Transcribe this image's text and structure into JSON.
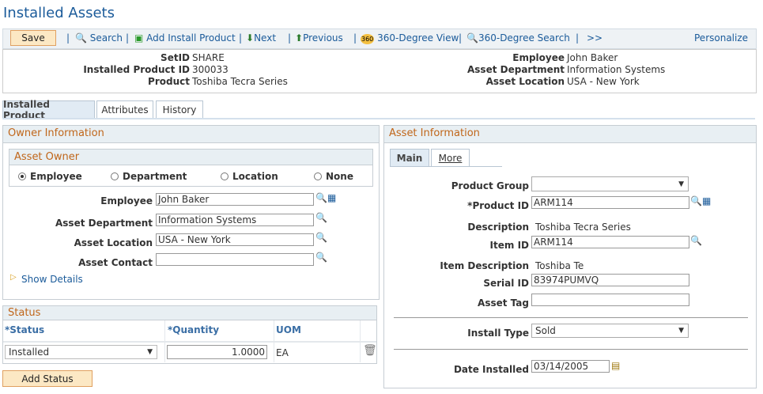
{
  "title": "Installed Assets",
  "toolbar": {
    "save": "Save",
    "search": "Search",
    "add": "Add Install Product",
    "next": "Next",
    "previous": "Previous",
    "view360": "360-Degree View",
    "search360": "360-Degree Search",
    "more": ">>",
    "personalize": "Personalize"
  },
  "header": {
    "setid_label": "SetID",
    "setid": "SHARE",
    "ipid_label": "Installed Product ID",
    "ipid": "300033",
    "product_label": "Product",
    "product": "Toshiba Tecra Series",
    "employee_label": "Employee",
    "employee": "John Baker",
    "dept_label": "Asset Department",
    "dept": "Information Systems",
    "loc_label": "Asset Location",
    "loc": "USA - New York"
  },
  "tabs": [
    "Installed Product",
    "Attributes",
    "History"
  ],
  "owner": {
    "title": "Owner Information",
    "asset_owner": "Asset Owner",
    "radios": [
      "Employee",
      "Department",
      "Location",
      "None"
    ],
    "selected": "Employee",
    "employee_label": "Employee",
    "employee": "John Baker",
    "dept_label": "Asset Department",
    "dept": "Information Systems",
    "loc_label": "Asset Location",
    "loc": "USA - New York",
    "contact_label": "Asset Contact",
    "contact": "",
    "show_details": "Show Details"
  },
  "status": {
    "title": "Status",
    "columns": [
      "*Status",
      "*Quantity",
      "UOM"
    ],
    "row": {
      "status": "Installed",
      "quantity": "1.0000",
      "uom": "EA"
    },
    "add": "Add Status"
  },
  "asset": {
    "title": "Asset Information",
    "subtabs": [
      "Main",
      "More"
    ],
    "product_group_label": "Product Group",
    "product_group": "",
    "product_id_label": "*Product ID",
    "product_id": "ARM114",
    "description_label": "Description",
    "description": "Toshiba Tecra Series",
    "item_id_label": "Item ID",
    "item_id": "ARM114",
    "item_desc_label": "Item Description",
    "item_desc": "Toshiba Te",
    "serial_label": "Serial ID",
    "serial": "83974PUMVQ",
    "tag_label": "Asset Tag",
    "tag": "",
    "install_type_label": "Install Type",
    "install_type": "Sold",
    "date_label": "Date Installed",
    "date": "03/14/2005"
  }
}
